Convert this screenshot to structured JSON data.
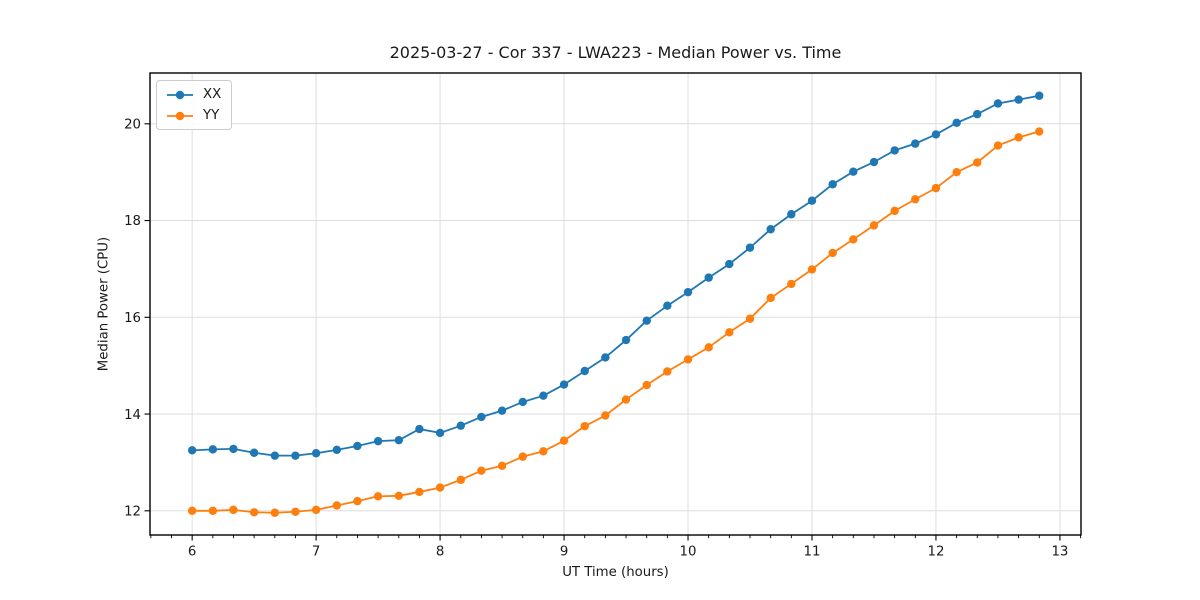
{
  "chart_data": {
    "type": "line",
    "title": "2025-03-27 - Cor 337 - LWA223 - Median Power vs. Time",
    "xlabel": "UT Time (hours)",
    "ylabel": "Median Power (CPU)",
    "xlim": [
      5.66,
      13.17
    ],
    "ylim": [
      11.5,
      21.05
    ],
    "xticks": [
      6,
      7,
      8,
      9,
      10,
      11,
      12,
      13
    ],
    "yticks": [
      12,
      14,
      16,
      18,
      20
    ],
    "x_minor_tick_step": 0.1666667,
    "grid": true,
    "legend_position": "upper left",
    "x": [
      6.0,
      6.167,
      6.333,
      6.5,
      6.667,
      6.833,
      7.0,
      7.167,
      7.333,
      7.5,
      7.667,
      7.833,
      8.0,
      8.167,
      8.333,
      8.5,
      8.667,
      8.833,
      9.0,
      9.167,
      9.333,
      9.5,
      9.667,
      9.833,
      10.0,
      10.167,
      10.333,
      10.5,
      10.667,
      10.833,
      11.0,
      11.167,
      11.333,
      11.5,
      11.667,
      11.833,
      12.0,
      12.167,
      12.333,
      12.5,
      12.667,
      12.833
    ],
    "series": [
      {
        "name": "XX",
        "color": "#1f77b4",
        "values": [
          13.25,
          13.27,
          13.28,
          13.2,
          13.14,
          13.14,
          13.19,
          13.26,
          13.34,
          13.44,
          13.46,
          13.69,
          13.61,
          13.76,
          13.94,
          14.07,
          14.25,
          14.38,
          14.61,
          14.89,
          15.17,
          15.53,
          15.93,
          16.24,
          16.52,
          16.82,
          17.1,
          17.44,
          17.82,
          18.13,
          18.41,
          18.75,
          19.01,
          19.21,
          19.45,
          19.59,
          19.78,
          20.02,
          20.2,
          20.42,
          20.5,
          20.58
        ]
      },
      {
        "name": "YY",
        "color": "#ff7f0e",
        "values": [
          12.0,
          12.0,
          12.02,
          11.97,
          11.96,
          11.98,
          12.02,
          12.11,
          12.2,
          12.3,
          12.31,
          12.39,
          12.48,
          12.64,
          12.83,
          12.93,
          13.12,
          13.23,
          13.45,
          13.75,
          13.97,
          14.3,
          14.6,
          14.88,
          15.13,
          15.38,
          15.69,
          15.97,
          16.4,
          16.69,
          16.99,
          17.33,
          17.61,
          17.9,
          18.2,
          18.44,
          18.67,
          19.0,
          19.2,
          19.55,
          19.72,
          19.84
        ]
      }
    ],
    "colors": {
      "grid": "#dedede",
      "spine": "#000000",
      "text": "#1a1a1a"
    }
  }
}
